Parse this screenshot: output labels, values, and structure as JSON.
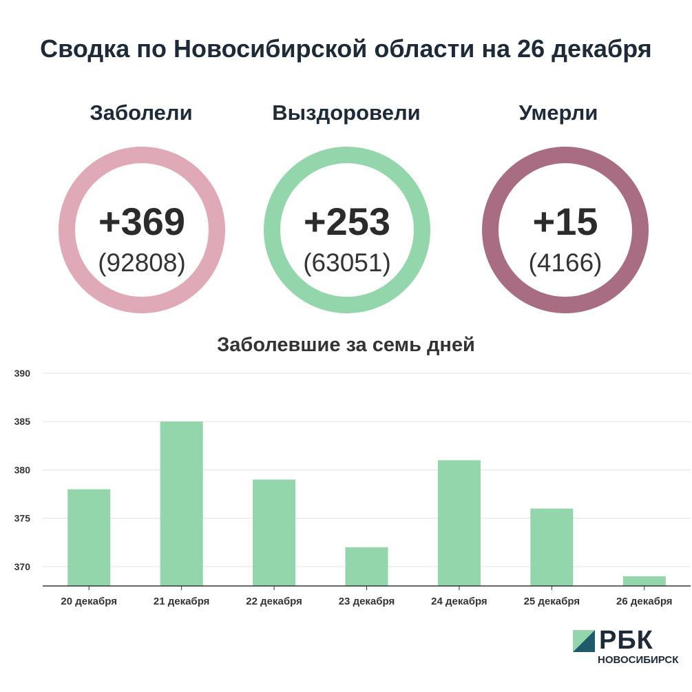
{
  "title": "Сводка по Новосибирской области на 26 декабря",
  "stats": [
    {
      "label": "Заболели",
      "main": "+369",
      "total": "(92808)",
      "color": "#dfa9b8"
    },
    {
      "label": "Выздоровели",
      "main": "+253",
      "total": "(63051)",
      "color": "#93d6ac"
    },
    {
      "label": "Умерли",
      "main": "+15",
      "total": "(4166)",
      "color": "#a86d82"
    }
  ],
  "chart_title": "Заболевшие за семь дней",
  "chart_data": {
    "type": "bar",
    "title": "Заболевшие за семь дней",
    "categories": [
      "20 декабря",
      "21 декабря",
      "22 декабря",
      "23 декабря",
      "24 декабря",
      "25 декабря",
      "26 декабря"
    ],
    "values": [
      378,
      385,
      379,
      372,
      381,
      376,
      369
    ],
    "ylim": [
      368,
      390
    ],
    "yticks": [
      370,
      375,
      380,
      385,
      390
    ],
    "grid": true,
    "bar_color": "#93d6ac"
  },
  "logo": {
    "name": "РБК",
    "sub": "НОВОСИБИРСК"
  }
}
